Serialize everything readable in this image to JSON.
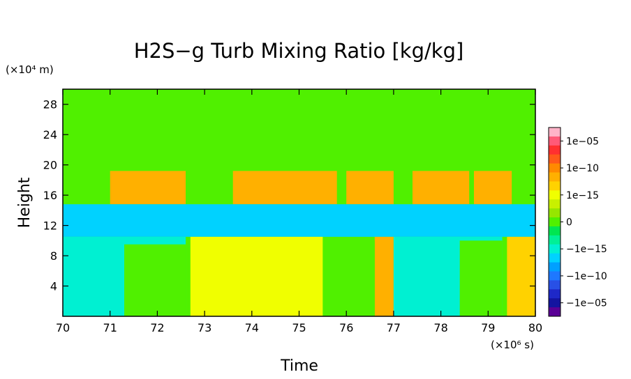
{
  "chart_data": {
    "type": "heatmap",
    "title": "H2S−g Turb Mixing Ratio [kg/kg]",
    "xlabel": "Time",
    "ylabel": "Height",
    "x_unit": "(×10⁶ s)",
    "y_unit": "(×10⁴ m)",
    "xlim": [
      70,
      80
    ],
    "ylim": [
      0,
      30
    ],
    "x_ticks": [
      "70",
      "71",
      "72",
      "73",
      "74",
      "75",
      "76",
      "77",
      "78",
      "79",
      "80"
    ],
    "y_ticks": [
      "4",
      "8",
      "12",
      "16",
      "20",
      "24",
      "28"
    ],
    "colorbar": {
      "tick_labels": [
        "1e−05",
        "1e−10",
        "1e−15",
        "0",
        "−1e−15",
        "−1e−10",
        "−1e−05"
      ],
      "colors": [
        "#ffb4c8",
        "#ff5a78",
        "#ff3030",
        "#ff5a1a",
        "#ff8a00",
        "#ffb000",
        "#ffd200",
        "#f0ff00",
        "#c8f000",
        "#96e600",
        "#50f000",
        "#00e650",
        "#00f096",
        "#00f0d2",
        "#00d2ff",
        "#00a0ff",
        "#1e78ff",
        "#2850e6",
        "#1e28c8",
        "#1414a0",
        "#5a0096"
      ]
    },
    "regions": [
      {
        "kind": "background",
        "x": [
          70,
          80
        ],
        "y": [
          0,
          30
        ],
        "color": "#50f000"
      },
      {
        "kind": "positive_plume",
        "x": [
          71.0,
          72.6
        ],
        "y": [
          14.8,
          19.2
        ],
        "color": "#ffb000"
      },
      {
        "kind": "positive_plume",
        "x": [
          73.6,
          75.8
        ],
        "y": [
          14.8,
          19.2
        ],
        "color": "#ffb000"
      },
      {
        "kind": "positive_plume",
        "x": [
          76.0,
          77.0
        ],
        "y": [
          14.8,
          19.2
        ],
        "color": "#ffb000"
      },
      {
        "kind": "positive_plume",
        "x": [
          77.4,
          78.6
        ],
        "y": [
          14.8,
          19.2
        ],
        "color": "#ffb000"
      },
      {
        "kind": "positive_plume",
        "x": [
          78.7,
          79.5
        ],
        "y": [
          14.8,
          19.2
        ],
        "color": "#ffb000"
      },
      {
        "kind": "negative_band",
        "x": [
          70,
          80
        ],
        "y": [
          10.5,
          14.8
        ],
        "color": "#00d2ff"
      },
      {
        "kind": "mixed_lower",
        "x": [
          70,
          72.6
        ],
        "y": [
          0,
          10.5
        ],
        "color": "#00f0d2"
      },
      {
        "kind": "mixed_lower",
        "x": [
          72.7,
          75.5
        ],
        "y": [
          0,
          10.5
        ],
        "color": "#f0ff00"
      },
      {
        "kind": "mixed_lower",
        "x": [
          76.6,
          77.0
        ],
        "y": [
          0,
          10.5
        ],
        "color": "#ffb000"
      },
      {
        "kind": "mixed_lower",
        "x": [
          77.0,
          79.3
        ],
        "y": [
          0,
          10.5
        ],
        "color": "#00f0d2"
      },
      {
        "kind": "mixed_lower",
        "x": [
          79.4,
          80.0
        ],
        "y": [
          0,
          10.5
        ],
        "color": "#ffd200"
      },
      {
        "kind": "neutral_patch",
        "x": [
          71.3,
          72.6
        ],
        "y": [
          0,
          9.5
        ],
        "color": "#50f000"
      },
      {
        "kind": "neutral_patch",
        "x": [
          75.6,
          76.6
        ],
        "y": [
          0,
          10.0
        ],
        "color": "#50f000"
      },
      {
        "kind": "neutral_patch",
        "x": [
          78.4,
          79.3
        ],
        "y": [
          0,
          10.0
        ],
        "color": "#50f000"
      }
    ]
  }
}
